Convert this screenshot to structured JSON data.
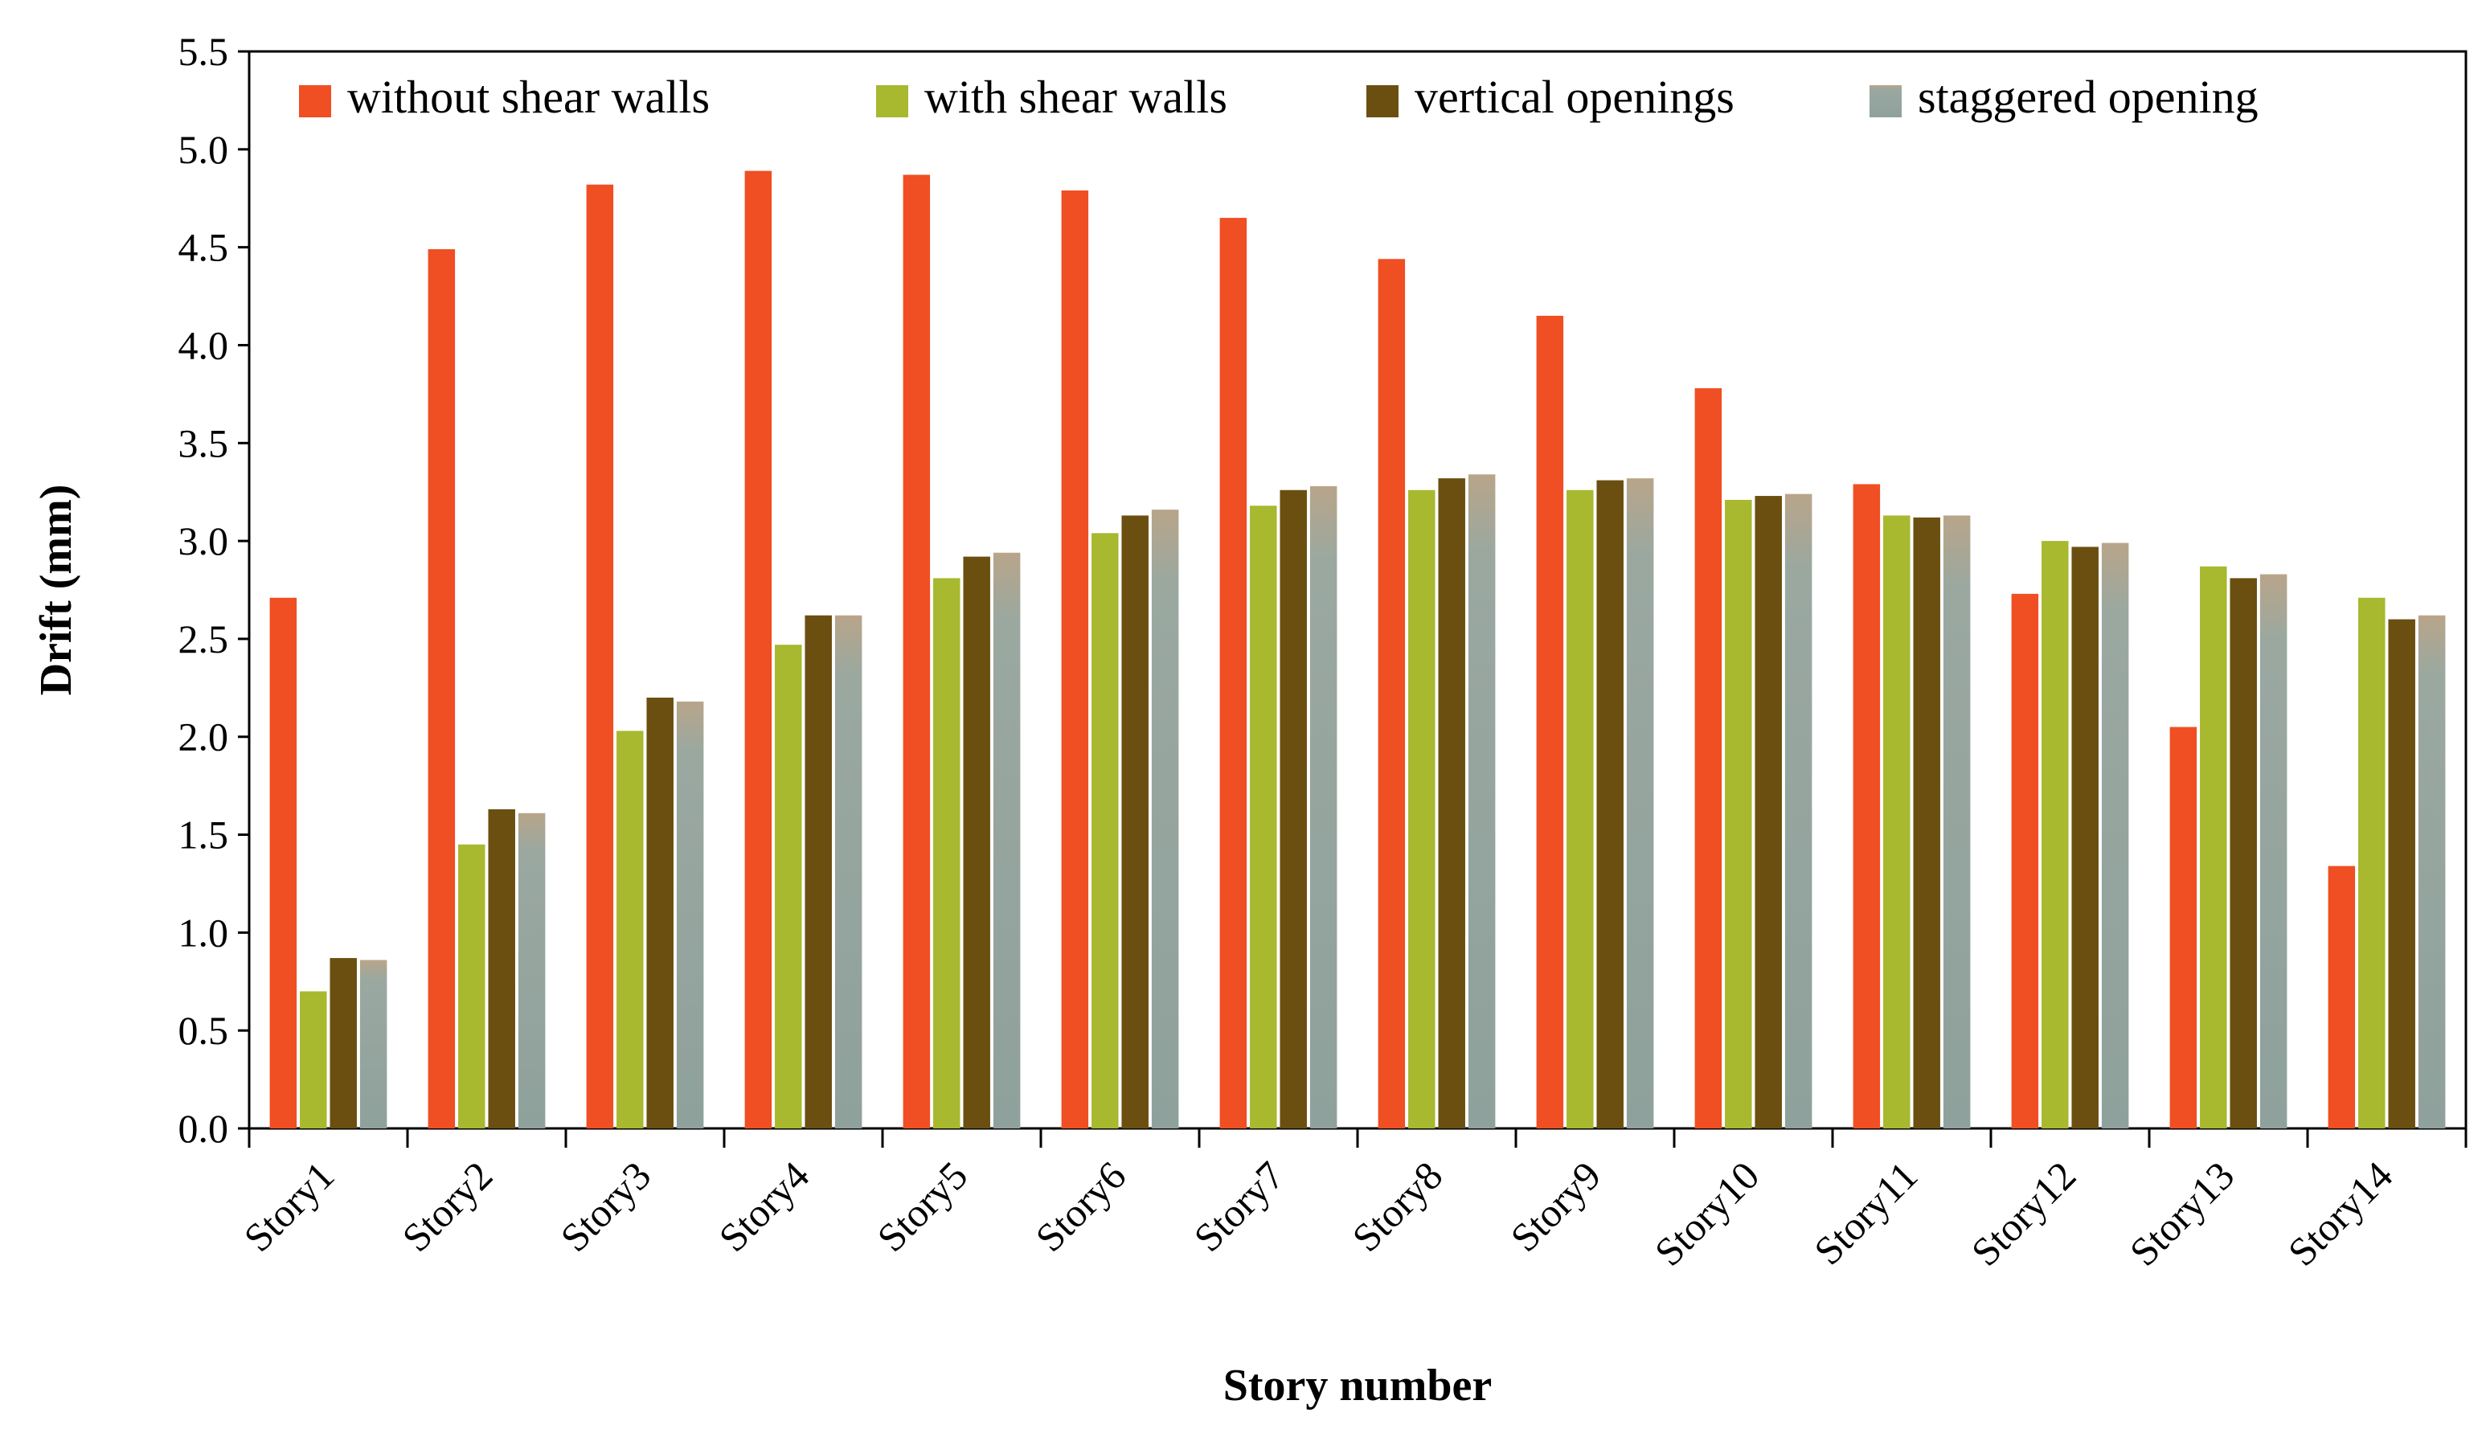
{
  "chart_data": {
    "type": "bar",
    "title": "",
    "xlabel": "Story number",
    "ylabel": "Drift (mm)",
    "ylim": [
      0,
      5.5
    ],
    "y_ticks": [
      "0.0",
      "0.5",
      "1.0",
      "1.5",
      "2.0",
      "2.5",
      "3.0",
      "3.5",
      "4.0",
      "4.5",
      "5.0",
      "5.5"
    ],
    "categories": [
      "Story1",
      "Story2",
      "Story3",
      "Story4",
      "Story5",
      "Story6",
      "Story7",
      "Story8",
      "Story9",
      "Story10",
      "Story11",
      "Story12",
      "Story13",
      "Story14"
    ],
    "legend_position": "top",
    "series": [
      {
        "name": "without shear walls",
        "color": "#f04e23",
        "values": [
          2.71,
          4.49,
          4.82,
          4.89,
          4.87,
          4.79,
          4.65,
          4.44,
          4.15,
          3.78,
          3.29,
          2.73,
          2.05,
          1.34
        ]
      },
      {
        "name": "with shear walls",
        "color": "#a8b82f",
        "values": [
          0.7,
          1.45,
          2.03,
          2.47,
          2.81,
          3.04,
          3.18,
          3.26,
          3.26,
          3.21,
          3.13,
          3.0,
          2.87,
          2.71
        ]
      },
      {
        "name": "vertical openings",
        "color": "#6b4f10",
        "values": [
          0.87,
          1.63,
          2.2,
          2.62,
          2.92,
          3.13,
          3.26,
          3.32,
          3.31,
          3.23,
          3.12,
          2.97,
          2.81,
          2.6
        ]
      },
      {
        "name": "staggered opening",
        "color": "#a9a08a",
        "values": [
          0.86,
          1.61,
          2.18,
          2.62,
          2.94,
          3.16,
          3.28,
          3.34,
          3.32,
          3.24,
          3.13,
          2.99,
          2.83,
          2.62
        ]
      }
    ]
  }
}
